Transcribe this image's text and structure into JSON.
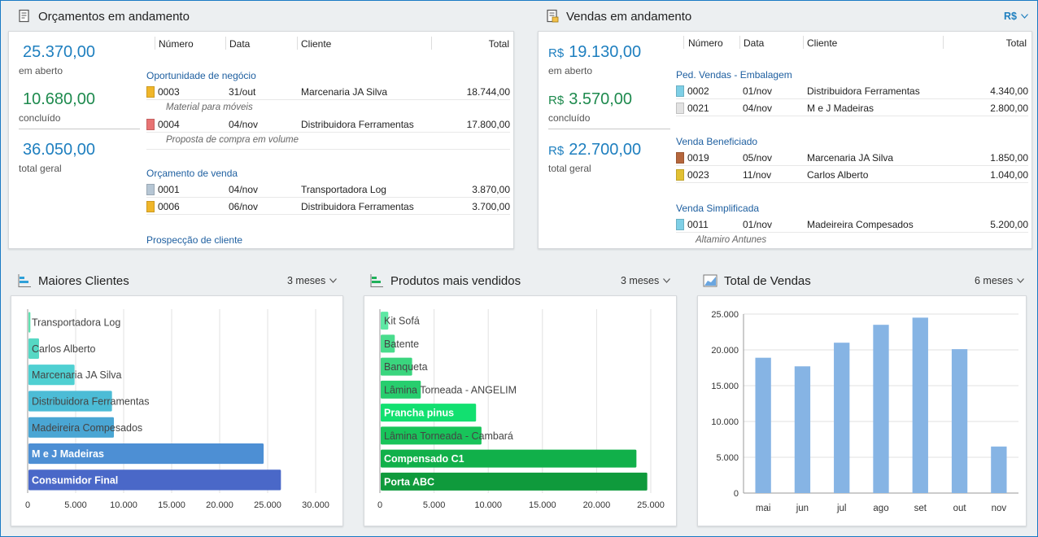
{
  "orcamentos": {
    "title": "Orçamentos em andamento",
    "summary": [
      {
        "value": "25.370,00",
        "label": "em aberto"
      },
      {
        "value": "10.680,00",
        "label": "concluído"
      },
      {
        "value": "36.050,00",
        "label": "total geral"
      }
    ],
    "columns": [
      "Número",
      "Data",
      "Cliente",
      "Total"
    ],
    "groups": [
      {
        "name": "Oportunidade de negócio",
        "rows": [
          {
            "num": "0003",
            "data": "31/out",
            "cliente": "Marcenaria JA Silva",
            "total": "18.744,00",
            "color": "#f0b62a",
            "note": "Material para móveis"
          },
          {
            "num": "0004",
            "data": "04/nov",
            "cliente": "Distribuidora Ferramentas",
            "total": "17.800,00",
            "color": "#e87373",
            "note": "Proposta de compra em volume"
          }
        ]
      },
      {
        "name": "Orçamento de venda",
        "rows": [
          {
            "num": "0001",
            "data": "04/nov",
            "cliente": "Transportadora Log",
            "total": "3.870,00",
            "color": "#b6c6d4"
          },
          {
            "num": "0006",
            "data": "06/nov",
            "cliente": "Distribuidora Ferramentas",
            "total": "3.700,00",
            "color": "#f0b62a"
          }
        ]
      },
      {
        "name": "Prospecção de cliente",
        "rows": []
      }
    ]
  },
  "vendas": {
    "title": "Vendas em andamento",
    "currency_selector": "R$",
    "currency": "R$",
    "summary": [
      {
        "value": "19.130,00",
        "label": "em aberto"
      },
      {
        "value": "3.570,00",
        "label": "concluído"
      },
      {
        "value": "22.700,00",
        "label": "total geral"
      }
    ],
    "columns": [
      "Número",
      "Data",
      "Cliente",
      "Total"
    ],
    "groups": [
      {
        "name": "Ped. Vendas - Embalagem",
        "rows": [
          {
            "num": "0002",
            "data": "01/nov",
            "cliente": "Distribuidora Ferramentas",
            "total": "4.340,00",
            "color": "#7ecfe6"
          },
          {
            "num": "0021",
            "data": "04/nov",
            "cliente": "M e J Madeiras",
            "total": "2.800,00",
            "color": "#e2e2e2"
          }
        ]
      },
      {
        "name": "Venda Beneficiado",
        "rows": [
          {
            "num": "0019",
            "data": "05/nov",
            "cliente": "Marcenaria JA Silva",
            "total": "1.850,00",
            "color": "#b5663c"
          },
          {
            "num": "0023",
            "data": "11/nov",
            "cliente": "Carlos Alberto",
            "total": "1.040,00",
            "color": "#e2c133"
          }
        ]
      },
      {
        "name": "Venda Simplificada",
        "rows": [
          {
            "num": "0011",
            "data": "01/nov",
            "cliente": "Madeireira Compesados",
            "total": "5.200,00",
            "color": "#7ecfe6",
            "note": "Altamiro Antunes"
          }
        ]
      }
    ]
  },
  "chart_data": [
    {
      "type": "bar",
      "orientation": "horizontal",
      "title": "Maiores Clientes",
      "period": "3 meses",
      "categories": [
        "Transportadora Log",
        "Carlos Alberto",
        "Marcenaria JA Silva",
        "Distribuidora Ferramentas",
        "Madeireira Compesados",
        "M e J Madeiras",
        "Consumidor Final"
      ],
      "values": [
        200,
        1100,
        4800,
        8700,
        8900,
        24500,
        26300
      ],
      "colors": [
        "#5fe0b0",
        "#56d8c4",
        "#4fd0d2",
        "#4cbcd6",
        "#4aa6d4",
        "#4d8fd4",
        "#4a68c8"
      ],
      "xlim": [
        0,
        30000
      ],
      "xticks": [
        "0",
        "5.000",
        "10.000",
        "15.000",
        "20.000",
        "25.000",
        "30.000"
      ],
      "grid": true
    },
    {
      "type": "bar",
      "orientation": "horizontal",
      "title": "Produtos mais vendidos",
      "period": "3 meses",
      "categories": [
        "Kit Sofá",
        "Batente",
        "Banqueta",
        "Lâmina Torneada - ANGELIM",
        "Prancha pinus",
        "Lâmina Torneada - Cambará",
        "Compensado C1",
        "Porta ABC"
      ],
      "values": [
        700,
        1300,
        2900,
        3700,
        8800,
        9300,
        23600,
        24600
      ],
      "colors": [
        "#5ee8a4",
        "#49dc8c",
        "#3ad57e",
        "#27ce6e",
        "#12e070",
        "#18c45a",
        "#11b04a",
        "#0f9a3c"
      ],
      "xlim": [
        0,
        25000
      ],
      "xticks": [
        "0",
        "5.000",
        "10.000",
        "15.000",
        "20.000",
        "25.000"
      ],
      "grid": true
    },
    {
      "type": "bar",
      "title": "Total de Vendas",
      "period": "6 meses",
      "categories": [
        "mai",
        "jun",
        "jul",
        "ago",
        "set",
        "out",
        "nov"
      ],
      "values": [
        18900,
        17700,
        21000,
        23500,
        24500,
        20100,
        6500
      ],
      "color": "#86b4e4",
      "ylim": [
        0,
        25000
      ],
      "yticks": [
        "0",
        "5.000",
        "10.000",
        "15.000",
        "20.000",
        "25.000"
      ],
      "grid": true
    }
  ]
}
